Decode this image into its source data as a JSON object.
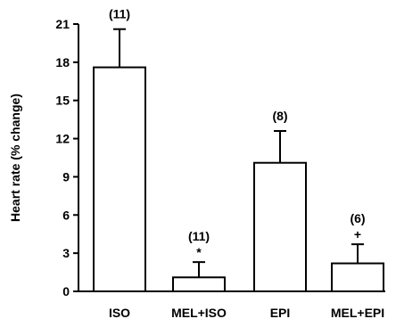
{
  "chart_data": {
    "type": "bar",
    "ylabel": "Heart rate (% change)",
    "xlabel": "",
    "title": "",
    "categories": [
      "ISO",
      "MEL+ISO",
      "EPI",
      "MEL+EPI"
    ],
    "values": [
      17.6,
      1.1,
      10.1,
      2.2
    ],
    "errors": [
      3.0,
      1.2,
      2.5,
      1.5
    ],
    "n_labels": [
      "(11)",
      "(11)",
      "(8)",
      "(6)"
    ],
    "significance_marks": [
      "",
      "*",
      "",
      "+"
    ],
    "ylim": [
      0,
      21
    ],
    "yticks": [
      "0",
      "3",
      "6",
      "9",
      "12",
      "15",
      "18",
      "21"
    ],
    "grid": false,
    "legend": "none",
    "bar_fill": "#ffffff",
    "bar_stroke": "#000000"
  }
}
